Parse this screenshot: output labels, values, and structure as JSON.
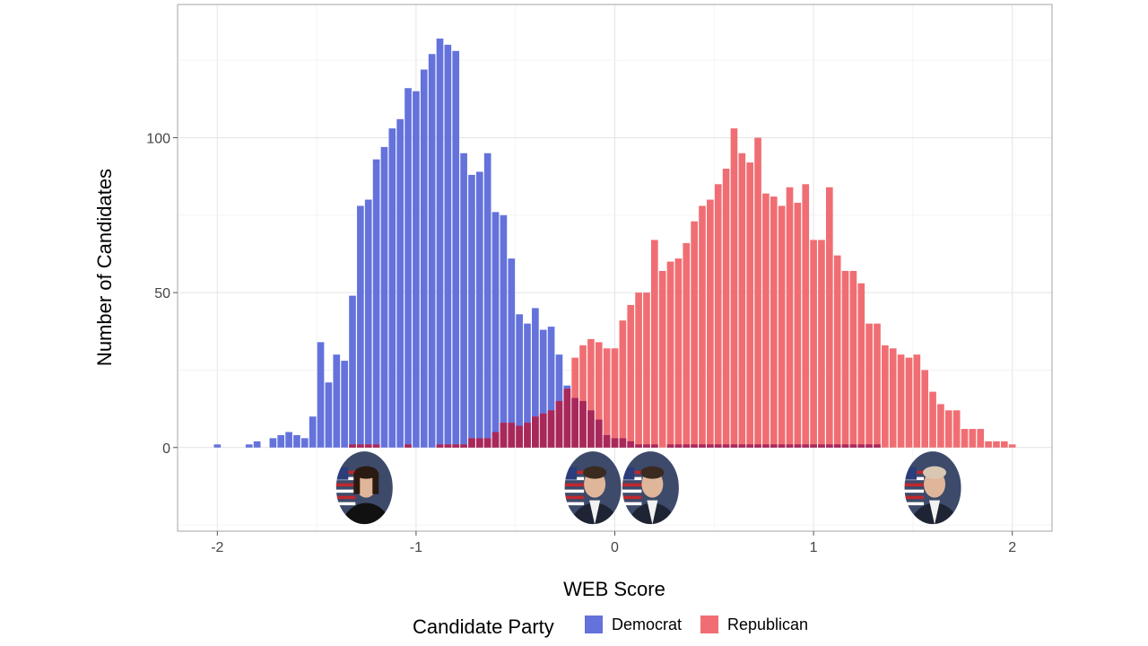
{
  "chart_data": {
    "type": "bar",
    "subtype": "overlapping histogram",
    "xlabel": "WEB Score",
    "ylabel": "Number of Candidates",
    "xlim": [
      -2.2,
      2.2
    ],
    "ylim": [
      -27,
      143
    ],
    "x_ticks": [
      -2,
      -1,
      0,
      1,
      2
    ],
    "x_tick_labels": [
      "-2",
      "-1",
      "0",
      "1",
      "2"
    ],
    "y_ticks": [
      0,
      50,
      100
    ],
    "y_tick_labels": [
      "0",
      "50",
      "100"
    ],
    "bin_width": 0.04,
    "grid": true,
    "legend": {
      "title": "Candidate Party",
      "position": "bottom",
      "entries": [
        {
          "label": "Democrat",
          "color": "#6472DC"
        },
        {
          "label": "Republican",
          "color": "#F06E73"
        }
      ]
    },
    "overlap_color": "#A8285A",
    "series": [
      {
        "name": "Democrat",
        "color": "#6472DC",
        "x": [
          -2.0,
          -1.84,
          -1.8,
          -1.72,
          -1.68,
          -1.64,
          -1.6,
          -1.56,
          -1.52,
          -1.48,
          -1.44,
          -1.4,
          -1.36,
          -1.32,
          -1.28,
          -1.24,
          -1.2,
          -1.16,
          -1.12,
          -1.08,
          -1.04,
          -1.0,
          -0.96,
          -0.92,
          -0.88,
          -0.84,
          -0.8,
          -0.76,
          -0.72,
          -0.68,
          -0.64,
          -0.6,
          -0.56,
          -0.52,
          -0.48,
          -0.44,
          -0.4,
          -0.36,
          -0.32,
          -0.28,
          -0.24,
          -0.2,
          -0.16,
          -0.12,
          -0.08,
          -0.04,
          0.0,
          0.04,
          0.08,
          0.12,
          0.16,
          0.2,
          0.24,
          0.28,
          0.32,
          0.36,
          0.4,
          0.44,
          0.48,
          0.52,
          0.56,
          0.6,
          0.64,
          0.68,
          0.72,
          0.76,
          0.8,
          0.84,
          0.88,
          0.92,
          0.96,
          1.0,
          1.04,
          1.08,
          1.12,
          1.16,
          1.2,
          1.24,
          1.28,
          1.32
        ],
        "values": [
          1,
          1,
          2,
          3,
          4,
          5,
          4,
          3,
          10,
          34,
          21,
          30,
          28,
          49,
          78,
          80,
          93,
          97,
          103,
          106,
          116,
          115,
          122,
          127,
          132,
          130,
          128,
          95,
          88,
          89,
          95,
          76,
          75,
          61,
          43,
          40,
          45,
          38,
          39,
          30,
          20,
          16,
          15,
          12,
          9,
          4,
          3,
          3,
          2,
          1,
          1,
          1,
          0,
          1,
          1,
          1,
          1,
          1,
          1,
          1,
          1,
          1,
          1,
          1,
          1,
          1,
          1,
          1,
          1,
          1,
          1,
          1,
          1,
          1,
          1,
          1,
          1,
          1,
          1,
          1
        ]
      },
      {
        "name": "Republican",
        "color": "#F06E73",
        "x": [
          -1.32,
          -1.28,
          -1.24,
          -1.2,
          -1.16,
          -1.12,
          -1.08,
          -1.04,
          -1.0,
          -0.96,
          -0.92,
          -0.88,
          -0.84,
          -0.8,
          -0.76,
          -0.72,
          -0.68,
          -0.64,
          -0.6,
          -0.56,
          -0.52,
          -0.48,
          -0.44,
          -0.4,
          -0.36,
          -0.32,
          -0.28,
          -0.24,
          -0.2,
          -0.16,
          -0.12,
          -0.08,
          -0.04,
          0.0,
          0.04,
          0.08,
          0.12,
          0.16,
          0.2,
          0.24,
          0.28,
          0.32,
          0.36,
          0.4,
          0.44,
          0.48,
          0.52,
          0.56,
          0.6,
          0.64,
          0.68,
          0.72,
          0.76,
          0.8,
          0.84,
          0.88,
          0.92,
          0.96,
          1.0,
          1.04,
          1.08,
          1.12,
          1.16,
          1.2,
          1.24,
          1.28,
          1.32,
          1.36,
          1.4,
          1.44,
          1.48,
          1.52,
          1.56,
          1.6,
          1.64,
          1.68,
          1.72,
          1.76,
          1.8,
          1.84,
          1.88,
          1.92,
          1.96,
          2.0
        ],
        "values": [
          1,
          1,
          1,
          1,
          0,
          0,
          0,
          1,
          0,
          0,
          0,
          1,
          1,
          1,
          1,
          3,
          3,
          3,
          5,
          8,
          8,
          7,
          8,
          10,
          11,
          12,
          15,
          19,
          29,
          33,
          35,
          34,
          32,
          32,
          41,
          46,
          50,
          50,
          67,
          57,
          60,
          61,
          66,
          73,
          78,
          80,
          85,
          90,
          103,
          95,
          92,
          100,
          82,
          81,
          78,
          84,
          79,
          85,
          67,
          67,
          84,
          62,
          57,
          57,
          53,
          40,
          40,
          33,
          32,
          30,
          29,
          30,
          25,
          18,
          14,
          12,
          12,
          6,
          6,
          6,
          2,
          2,
          2,
          1
        ]
      }
    ],
    "annotations": [
      {
        "kind": "portrait",
        "label": "candidate-photo-left",
        "x": -1.26
      },
      {
        "kind": "portrait",
        "label": "candidate-photo-center-left",
        "x": -0.11
      },
      {
        "kind": "portrait",
        "label": "candidate-photo-center-right",
        "x": 0.18
      },
      {
        "kind": "portrait",
        "label": "candidate-photo-right",
        "x": 1.6
      }
    ]
  }
}
